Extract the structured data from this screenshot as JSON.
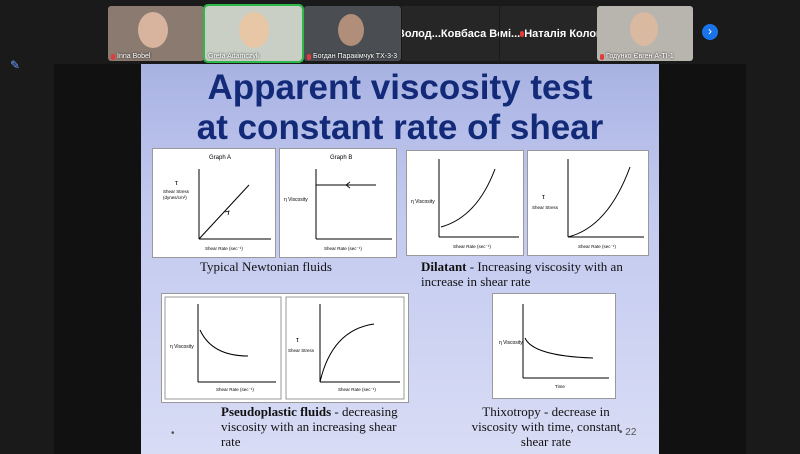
{
  "participants": [
    {
      "name": "Inna Bobel",
      "muted": true
    },
    {
      "name": "Greta Adamczyk",
      "muted": false,
      "active": true
    },
    {
      "name": "Богдан Паракімчук ТХ-3-3",
      "muted": true
    },
    {
      "name": "Ковбаса Володимир",
      "muted": false,
      "display": "Ковбаса  Волод..."
    },
    {
      "name": "Наталія Коломійченко тх...",
      "muted": true,
      "display": "Наталія  Коломі..."
    },
    {
      "name": "Годунко Євген А-ТІ-1",
      "muted": true
    }
  ],
  "slide": {
    "title_line1": "Apparent viscosity test",
    "title_line2": "at constant rate of shear",
    "page_number": "22",
    "graph_a_title": "Graph A",
    "graph_b_title": "Graph B",
    "tau": "τ",
    "eta_viscosity": "η Viscosity",
    "shear_stress": "Shear Stress",
    "shear_stress_units": "(dynes/cm²)",
    "shear_rate": "Shear Rate (sec⁻¹)",
    "gamma": "γ̇",
    "time": "Time",
    "caption_newtonian": "Typical Newtonian fluids",
    "caption_dilatant_bold": "Dilatant",
    "caption_dilatant_rest": " - Increasing viscosity with an increase in shear rate",
    "caption_pseudo_bold": "Pseudoplastic fluids",
    "caption_pseudo_rest": " - decreasing viscosity with an increasing shear rate",
    "caption_thixotropy": "Thixotropy - decrease in viscosity with time, constant shear rate"
  },
  "colors": {
    "active_border": "#2fb84a",
    "title": "#122a78",
    "next_button": "#1a73e8"
  }
}
